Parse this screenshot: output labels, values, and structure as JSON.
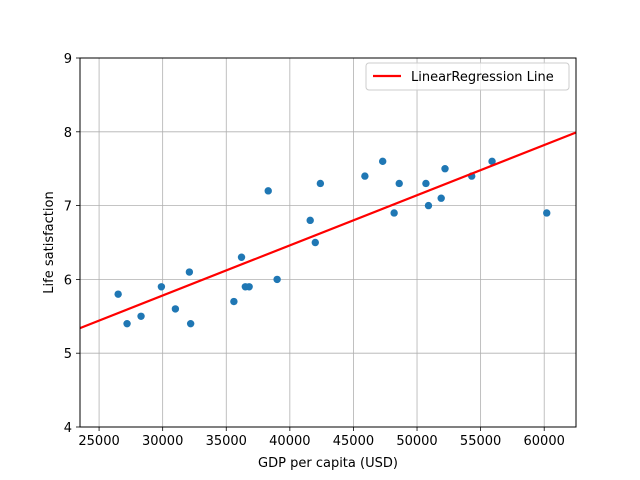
{
  "chart_data": {
    "type": "scatter",
    "title": "",
    "xlabel": "GDP per capita (USD)",
    "ylabel": "Life satisfaction",
    "xlim": [
      23500,
      62500
    ],
    "ylim": [
      4,
      9
    ],
    "xticks": [
      25000,
      30000,
      35000,
      40000,
      45000,
      50000,
      55000,
      60000
    ],
    "yticks": [
      4,
      5,
      6,
      7,
      8,
      9
    ],
    "grid": true,
    "legend_position": "top-right",
    "colors": {
      "points": "#1f77b4",
      "line": "#ff0000",
      "grid": "#b0b0b0"
    },
    "points": {
      "x": [
        26500,
        27200,
        28300,
        29900,
        31000,
        32100,
        32200,
        35600,
        36200,
        36500,
        36800,
        38300,
        39000,
        41600,
        42000,
        42400,
        45900,
        47300,
        48200,
        48600,
        50700,
        50900,
        51900,
        52200,
        54300,
        55900,
        60200
      ],
      "y": [
        5.8,
        5.4,
        5.5,
        5.9,
        5.6,
        6.1,
        5.4,
        5.7,
        6.3,
        5.9,
        5.9,
        7.2,
        6.0,
        6.8,
        6.5,
        7.3,
        7.4,
        7.6,
        6.9,
        7.3,
        7.3,
        7.0,
        7.1,
        7.5,
        7.4,
        7.6,
        6.9
      ]
    },
    "series": [
      {
        "name": "LinearRegression Line",
        "type": "line",
        "x": [
          23500,
          62500
        ],
        "y": [
          5.34,
          7.99
        ]
      }
    ]
  }
}
